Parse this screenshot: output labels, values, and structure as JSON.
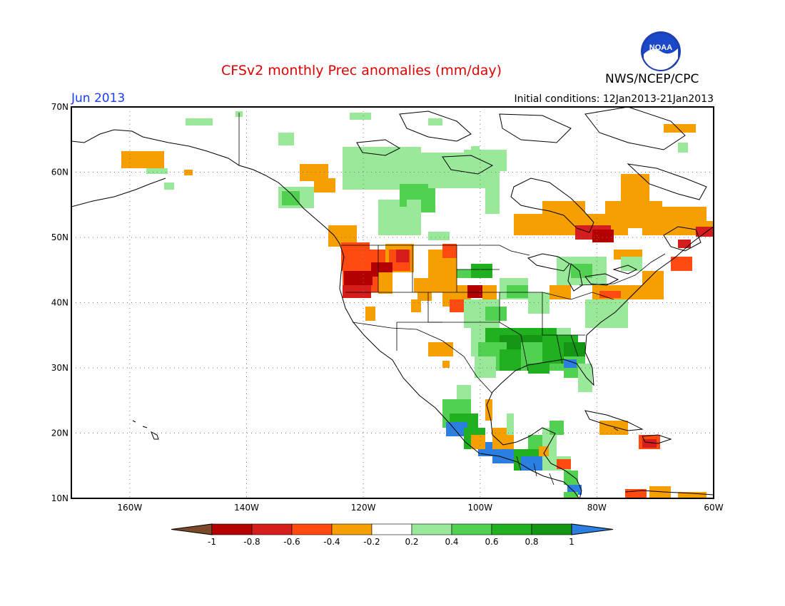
{
  "header": {
    "title": "CFSv2 monthly Prec anomalies (mm/day)",
    "period": "Jun 2013",
    "initial_conditions": "Initial conditions: 12Jan2013-21Jan2013",
    "agency": "NWS/NCEP/CPC",
    "logo_text": "NOAA"
  },
  "map": {
    "lon_range": [
      -170,
      -60
    ],
    "lat_range": [
      10,
      70
    ],
    "lat_labels": [
      "70N",
      "60N",
      "50N",
      "40N",
      "30N",
      "20N",
      "10N"
    ],
    "lon_labels": [
      "160W",
      "140W",
      "120W",
      "100W",
      "80W",
      "60W"
    ],
    "grid": "dotted"
  },
  "legend": {
    "bins": [
      "-1",
      "-0.8",
      "-0.6",
      "-0.4",
      "-0.2",
      "0.2",
      "0.4",
      "0.6",
      "0.8",
      "1"
    ],
    "colors": {
      "below_-1": "#7a4a2a",
      "-1_-0.8": "#b40000",
      "-0.8_-0.6": "#d61d1d",
      "-0.6_-0.4": "#ff4a12",
      "-0.4_-0.2": "#f5a000",
      "-0.2_0.2": "#ffffff",
      "0.2_0.4": "#9ae89a",
      "0.4_0.6": "#52d052",
      "0.6_0.8": "#20b020",
      "0.8_1": "#149614",
      "above_1": "#2a7fe0"
    }
  }
}
